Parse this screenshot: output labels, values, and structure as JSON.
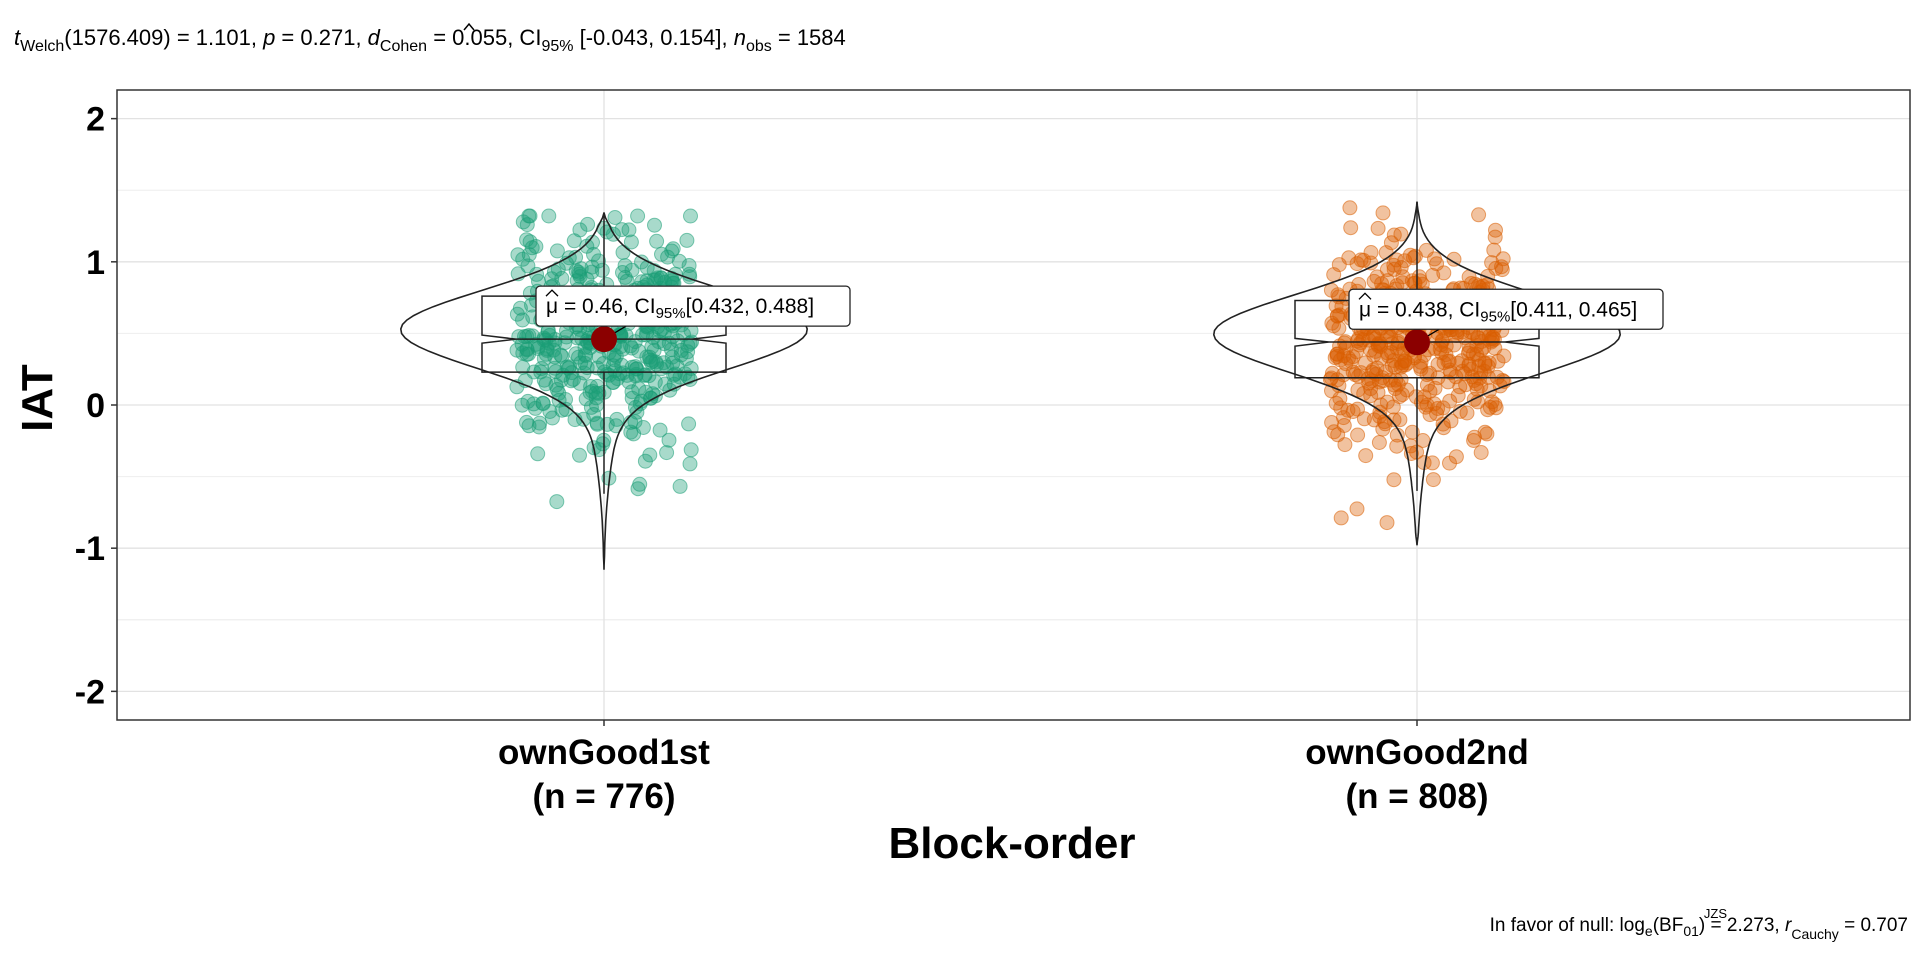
{
  "chart_data": {
    "type": "violin-box-scatter",
    "subtitle": {
      "t_sub": "Welch",
      "t_df_val": "(1576.409) = 1.101, ",
      "p_label": "p",
      "p_val": " = 0.271, ",
      "d_label": "d",
      "d_sub": "Cohen",
      "d_val": " = 0.055, CI",
      "ci_sub": "95%",
      "ci_val": " [-0.043, 0.154], ",
      "n_label": "n",
      "n_sub": "obs",
      "n_val": " = 1584"
    },
    "ylabel": "IAT",
    "xlabel": "Block-order",
    "ylim": [
      -2.2,
      2.2
    ],
    "yticks": [
      -2,
      -1,
      0,
      1,
      2
    ],
    "ytick_labels": [
      "-2",
      "-1",
      "0",
      "1",
      "2"
    ],
    "grid": true,
    "groups": [
      {
        "name": "ownGood1st",
        "n_label": "(n = 776)",
        "color": "#1B9E77",
        "mean": 0.46,
        "mean_label": "= 0.46, CI",
        "mean_ci": "[0.432, 0.488]",
        "ci_sub": "95%",
        "box": {
          "q1": 0.23,
          "median": 0.46,
          "q3": 0.76,
          "notch_low": 0.432,
          "notch_high": 0.488,
          "whisker_low": -0.62,
          "whisker_high": 1.33
        },
        "violin": {
          "min": -1.15,
          "max": 1.34,
          "peak": 0.53
        }
      },
      {
        "name": "ownGood2nd",
        "n_label": "(n = 808)",
        "color": "#D95F02",
        "mean": 0.438,
        "mean_label": "= 0.438, CI",
        "mean_ci": "[0.411, 0.465]",
        "ci_sub": "95%",
        "box": {
          "q1": 0.19,
          "median": 0.44,
          "q3": 0.73,
          "notch_low": 0.411,
          "notch_high": 0.465,
          "whisker_low": -0.6,
          "whisker_high": 1.42
        },
        "violin": {
          "min": -0.98,
          "max": 1.42,
          "peak": 0.5
        }
      }
    ],
    "mean_color": "#8B0000",
    "mean_symbol": "μ",
    "caption": {
      "prefix": "In favor of null: log",
      "log_sub": "e",
      "bf": "(BF",
      "bf_sub": "01",
      "mid": ") = 2.273, ",
      "r": "r",
      "r_sup": "JZS",
      "r_sub": "Cauchy",
      "tail": " = 0.707"
    }
  }
}
